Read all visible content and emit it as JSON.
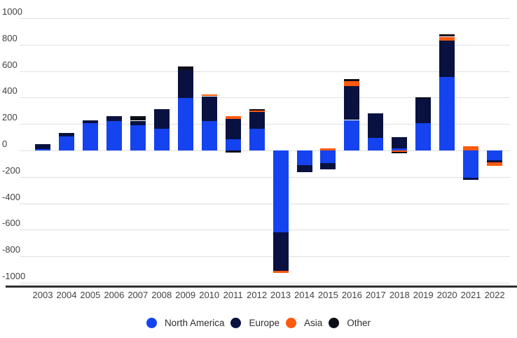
{
  "chart": {
    "background": "#ffffff",
    "gridline_color": "#e0e0e0",
    "baseline_color": "#303030",
    "tick_label_color": "#424242",
    "legend_label_color": "#2f2f2f",
    "y_tick_labels": [
      "1000",
      "800",
      "600",
      "400",
      "200",
      "0",
      "-200",
      "-400",
      "-600",
      "-800",
      "-1000"
    ]
  },
  "chart_data": {
    "type": "bar",
    "stacked": true,
    "title": "",
    "xlabel": "",
    "ylabel": "",
    "categories": [
      "2003",
      "2004",
      "2005",
      "2006",
      "2007",
      "2008",
      "2009",
      "2010",
      "2011",
      "2012",
      "2013",
      "2014",
      "2015",
      "2016",
      "2017",
      "2018",
      "2019",
      "2020",
      "2021",
      "2022"
    ],
    "series": [
      {
        "name": "North America",
        "color": "#1543f0",
        "values": [
          10,
          105,
          205,
          220,
          190,
          165,
          395,
          220,
          85,
          165,
          -620,
          -110,
          -95,
          230,
          95,
          15,
          205,
          555,
          -205,
          -75
        ]
      },
      {
        "name": "Europe",
        "color": "#081140",
        "values": [
          40,
          25,
          25,
          40,
          35,
          150,
          215,
          190,
          155,
          125,
          -290,
          -55,
          -45,
          255,
          185,
          85,
          185,
          275,
          -20,
          -15
        ]
      },
      {
        "name": "Asia",
        "color": "#fc5a0e",
        "values": [
          0,
          0,
          0,
          0,
          0,
          0,
          0,
          15,
          20,
          10,
          -15,
          0,
          15,
          40,
          0,
          -10,
          0,
          30,
          30,
          -25
        ]
      },
      {
        "name": "Other",
        "color": "#0d0f18",
        "values": [
          0,
          0,
          0,
          0,
          35,
          0,
          25,
          0,
          -15,
          10,
          0,
          0,
          0,
          15,
          0,
          -10,
          10,
          20,
          0,
          0
        ]
      }
    ],
    "ylim": [
      -1000,
      1000
    ],
    "y_ticks": [
      1000,
      800,
      600,
      400,
      200,
      0,
      -200,
      -400,
      -600,
      -800,
      -1000
    ],
    "grid": true,
    "legend_position": "bottom"
  }
}
